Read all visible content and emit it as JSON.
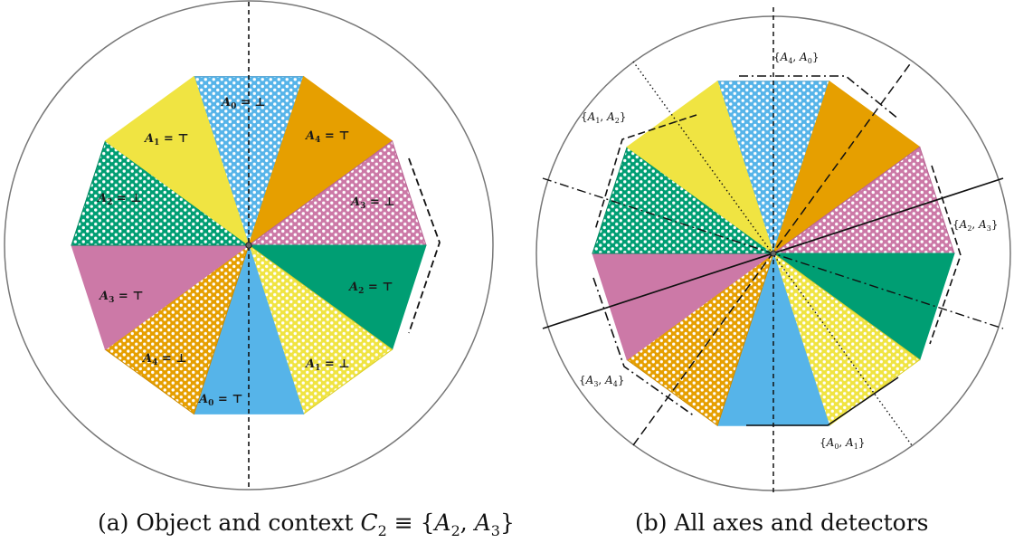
{
  "colors": {
    "c0": "#56b4e9",
    "c1": "#f0e442",
    "c2": "#009e73",
    "c3": "#cc79a7",
    "c4": "#e69f00",
    "circle": "#777777",
    "line": "#111111"
  },
  "panel_a": {
    "caption": {
      "prefix": "(a) Object and context ",
      "ctx": "C",
      "ctx_sub": "2",
      "mid": " ≡ {",
      "a": "A",
      "a_sub": "2",
      "comma": ", ",
      "b": "A",
      "b_sub": "3",
      "close": "}"
    },
    "labels": [
      {
        "letter": "A",
        "sub": "0",
        "val": " = ⊥"
      },
      {
        "letter": "A",
        "sub": "4",
        "val": " = ⊤"
      },
      {
        "letter": "A",
        "sub": "3",
        "val": " = ⊥"
      },
      {
        "letter": "A",
        "sub": "2",
        "val": " = ⊤"
      },
      {
        "letter": "A",
        "sub": "1",
        "val": " = ⊥"
      },
      {
        "letter": "A",
        "sub": "0",
        "val": " = ⊤"
      },
      {
        "letter": "A",
        "sub": "4",
        "val": " = ⊥"
      },
      {
        "letter": "A",
        "sub": "3",
        "val": " = ⊤"
      },
      {
        "letter": "A",
        "sub": "2",
        "val": " = ⊥"
      },
      {
        "letter": "A",
        "sub": "1",
        "val": " = ⊤"
      }
    ]
  },
  "panel_b": {
    "caption": "(b) All axes and detectors",
    "detectors": [
      {
        "open": "{",
        "a": "A",
        "a_sub": "4",
        "comma": ", ",
        "b": "A",
        "b_sub": "0",
        "close": "}"
      },
      {
        "open": "{",
        "a": "A",
        "a_sub": "1",
        "comma": ", ",
        "b": "A",
        "b_sub": "2",
        "close": "}"
      },
      {
        "open": "{",
        "a": "A",
        "a_sub": "2",
        "comma": ", ",
        "b": "A",
        "b_sub": "3",
        "close": "}"
      },
      {
        "open": "{",
        "a": "A",
        "a_sub": "3",
        "comma": ", ",
        "b": "A",
        "b_sub": "4",
        "close": "}"
      },
      {
        "open": "{",
        "a": "A",
        "a_sub": "0",
        "comma": ", ",
        "b": "A",
        "b_sub": "1",
        "close": "}"
      }
    ]
  }
}
